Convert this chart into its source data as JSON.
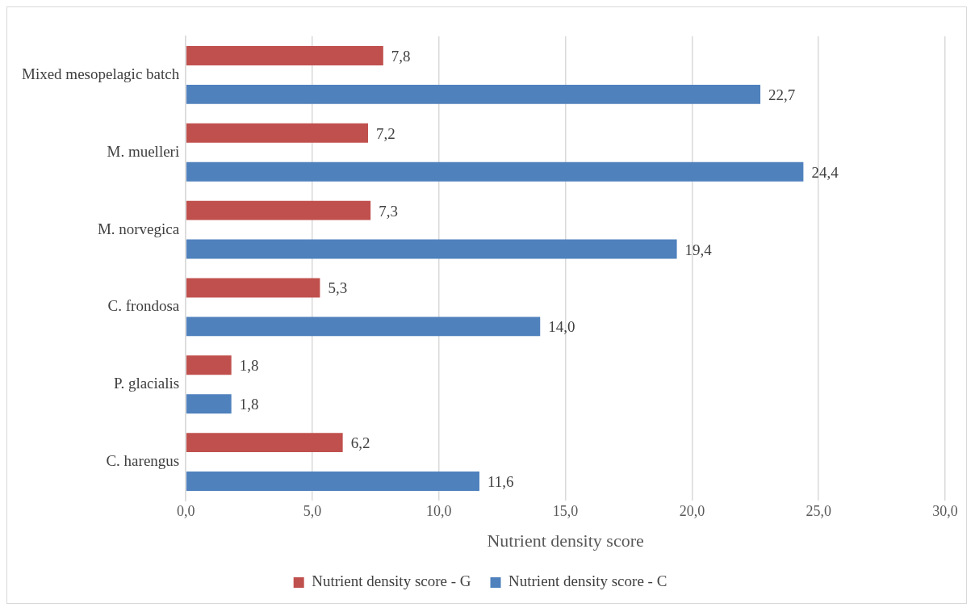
{
  "chart_data": {
    "type": "bar",
    "orientation": "horizontal",
    "xlabel": "Nutrient density score",
    "categories": [
      "Mixed mesopelagic batch",
      "M. muelleri",
      "M. norvegica",
      "C. frondosa",
      "P. glacialis",
      "C. harengus"
    ],
    "series": [
      {
        "name": "Nutrient density score - G",
        "color": "#c0504d",
        "values": [
          7.8,
          7.2,
          7.3,
          5.3,
          1.8,
          6.2
        ],
        "value_labels": [
          "7,8",
          "7,2",
          "7,3",
          "5,3",
          "1,8",
          "6,2"
        ]
      },
      {
        "name": "Nutrient density score - C",
        "color": "#4f81bd",
        "values": [
          22.7,
          24.4,
          19.4,
          14.0,
          1.8,
          11.6
        ],
        "value_labels": [
          "22,7",
          "24,4",
          "19,4",
          "14,0",
          "1,8",
          "11,6"
        ]
      }
    ],
    "xlim": [
      0,
      30
    ],
    "xticks": [
      {
        "value": 0,
        "label": "0,0"
      },
      {
        "value": 5,
        "label": "5,0"
      },
      {
        "value": 10,
        "label": "10,0"
      },
      {
        "value": 15,
        "label": "15,0"
      },
      {
        "value": 20,
        "label": "20,0"
      },
      {
        "value": 25,
        "label": "25,0"
      },
      {
        "value": 30,
        "label": "30,0"
      }
    ],
    "grid": "x",
    "legend": "bottom"
  }
}
